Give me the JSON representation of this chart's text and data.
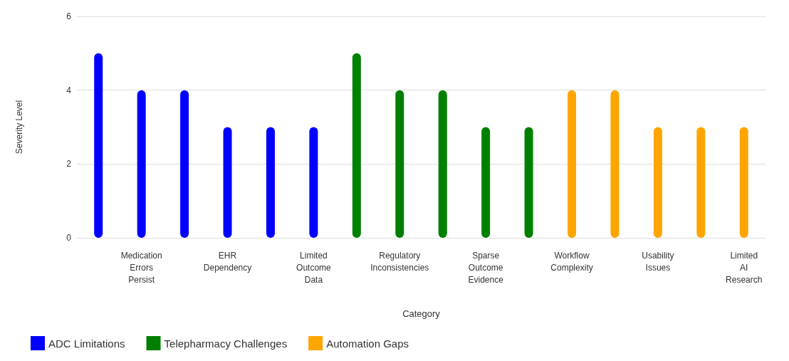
{
  "chart_data": {
    "type": "bar",
    "xlabel": "Category",
    "ylabel": "Severity Level",
    "categories": [
      null,
      "Medication Errors Persist",
      null,
      "EHR Dependency",
      null,
      "Limited Outcome Data",
      null,
      "Regulatory Inconsistencies",
      null,
      "Sparse Outcome Evidence",
      null,
      "Workflow Complexity",
      null,
      "Usability Issues",
      null,
      "Limited AI Research"
    ],
    "series": [
      {
        "name": "ADC Limitations",
        "color": "#0000ff",
        "values": [
          5,
          4,
          4,
          3,
          3,
          3,
          null,
          null,
          null,
          null,
          null,
          null,
          null,
          null,
          null,
          null
        ]
      },
      {
        "name": "Telepharmacy Challenges",
        "color": "#008000",
        "values": [
          null,
          null,
          null,
          null,
          null,
          null,
          5,
          4,
          4,
          3,
          3,
          null,
          null,
          null,
          null,
          null
        ]
      },
      {
        "name": "Automation Gaps",
        "color": "#ffa500",
        "values": [
          null,
          null,
          null,
          null,
          null,
          null,
          null,
          null,
          null,
          null,
          null,
          4,
          4,
          3,
          3,
          3
        ]
      }
    ],
    "ylim": [
      0,
      6
    ],
    "yticks": [
      0,
      2,
      4,
      6
    ],
    "grid": "y",
    "legend": "bottom left"
  }
}
